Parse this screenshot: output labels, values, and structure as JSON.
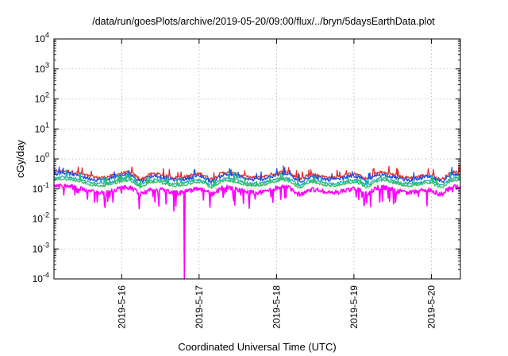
{
  "chart_data": {
    "type": "line",
    "title": "/data/run/goesPlots/archive/2019-05-20/09:00/flux/../bryn/5daysEarthData.plot",
    "xlabel": "Coordinated Universal Time (UTC)",
    "ylabel": "cGy/day",
    "yscale": "log",
    "ylim": [
      0.0001,
      10000
    ],
    "xlim": [
      "2019-05-15 03:00",
      "2019-05-20 09:00"
    ],
    "grid": true,
    "x_ticks": [
      "2019-5-16",
      "2019-5-17",
      "2019-5-18",
      "2019-5-19",
      "2019-5-20"
    ],
    "y_ticks": [
      {
        "base": "10",
        "exp": "-4"
      },
      {
        "base": "10",
        "exp": "-3"
      },
      {
        "base": "10",
        "exp": "-2"
      },
      {
        "base": "10",
        "exp": "-1"
      },
      {
        "base": "10",
        "exp": "0"
      },
      {
        "base": "10",
        "exp": "1"
      },
      {
        "base": "10",
        "exp": "2"
      },
      {
        "base": "10",
        "exp": "3"
      },
      {
        "base": "10",
        "exp": "4"
      }
    ],
    "series": [
      {
        "color": "#e03030",
        "level": 0.32,
        "noise": 0.12
      },
      {
        "color": "#2050e0",
        "level": 0.27,
        "noise": 0.14
      },
      {
        "color": "#20b0b0",
        "level": 0.2,
        "noise": 0.1
      },
      {
        "color": "#30c060",
        "level": 0.17,
        "noise": 0.08
      },
      {
        "color": "#ff00ff",
        "level": 0.12,
        "noise": 0.3
      }
    ],
    "features": {
      "dip_times": [
        "2019-05-16 06:00",
        "2019-05-17 04:00",
        "2019-05-18 07:00",
        "2019-05-19 04:00",
        "2019-05-20 03:00"
      ],
      "magenta_spike": {
        "time": "2019-05-16 19:30",
        "value": 0.0001
      }
    }
  }
}
